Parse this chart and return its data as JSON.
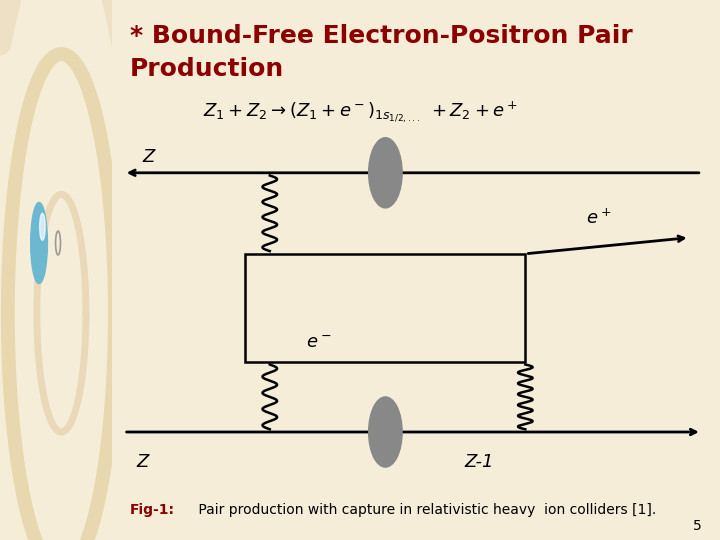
{
  "title_line1": "* Bound-Free Electron-Positron Pair",
  "title_line2": "Production",
  "title_color": "#8B0000",
  "title_fontsize": 18,
  "fig_caption_bold": "Fig-1:",
  "fig_caption_rest": " Pair production with capture in relativistic heavy  ion colliders [1].",
  "caption_color": "#8B0000",
  "caption_fontsize": 10,
  "page_number": "5",
  "bg_color": "#F5EDD8",
  "left_panel_color": "#DDD0B0",
  "main_bg": "#FFFFFF",
  "diagram_line_color": "#000000",
  "ellipse_color": "#888888",
  "circle_color": "#E8D8B8",
  "circle2_color": "#E0CCA0",
  "blue_ball_color": "#6BB8D0"
}
